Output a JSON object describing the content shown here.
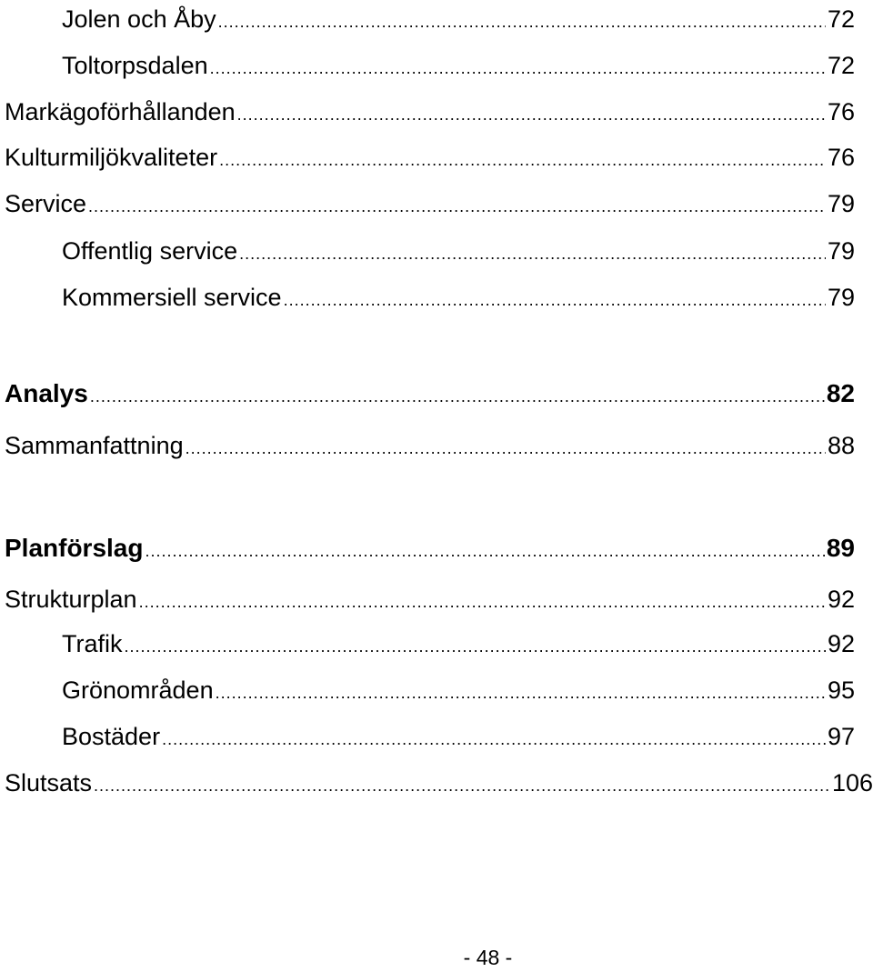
{
  "toc": {
    "entries": [
      {
        "title": "Jolen och Åby",
        "page": "72"
      },
      {
        "title": "Toltorpsdalen",
        "page": "72"
      },
      {
        "title": "Markägoförhållanden",
        "page": "76"
      },
      {
        "title": "Kulturmiljökvaliteter",
        "page": "76"
      },
      {
        "title": "Service",
        "page": "79"
      },
      {
        "title": "Offentlig service",
        "page": "79"
      },
      {
        "title": "Kommersiell service",
        "page": "79"
      },
      {
        "title": "Analys",
        "page": "82"
      },
      {
        "title": "Sammanfattning",
        "page": "88"
      },
      {
        "title": "Planförslag",
        "page": "89"
      },
      {
        "title": "Strukturplan",
        "page": "92"
      },
      {
        "title": "Trafik",
        "page": "92"
      },
      {
        "title": "Grönområden",
        "page": "95"
      },
      {
        "title": "Bostäder",
        "page": "97"
      },
      {
        "title": "Slutsats",
        "page": "106"
      }
    ]
  },
  "footer": {
    "page_number": "- 48 -"
  }
}
